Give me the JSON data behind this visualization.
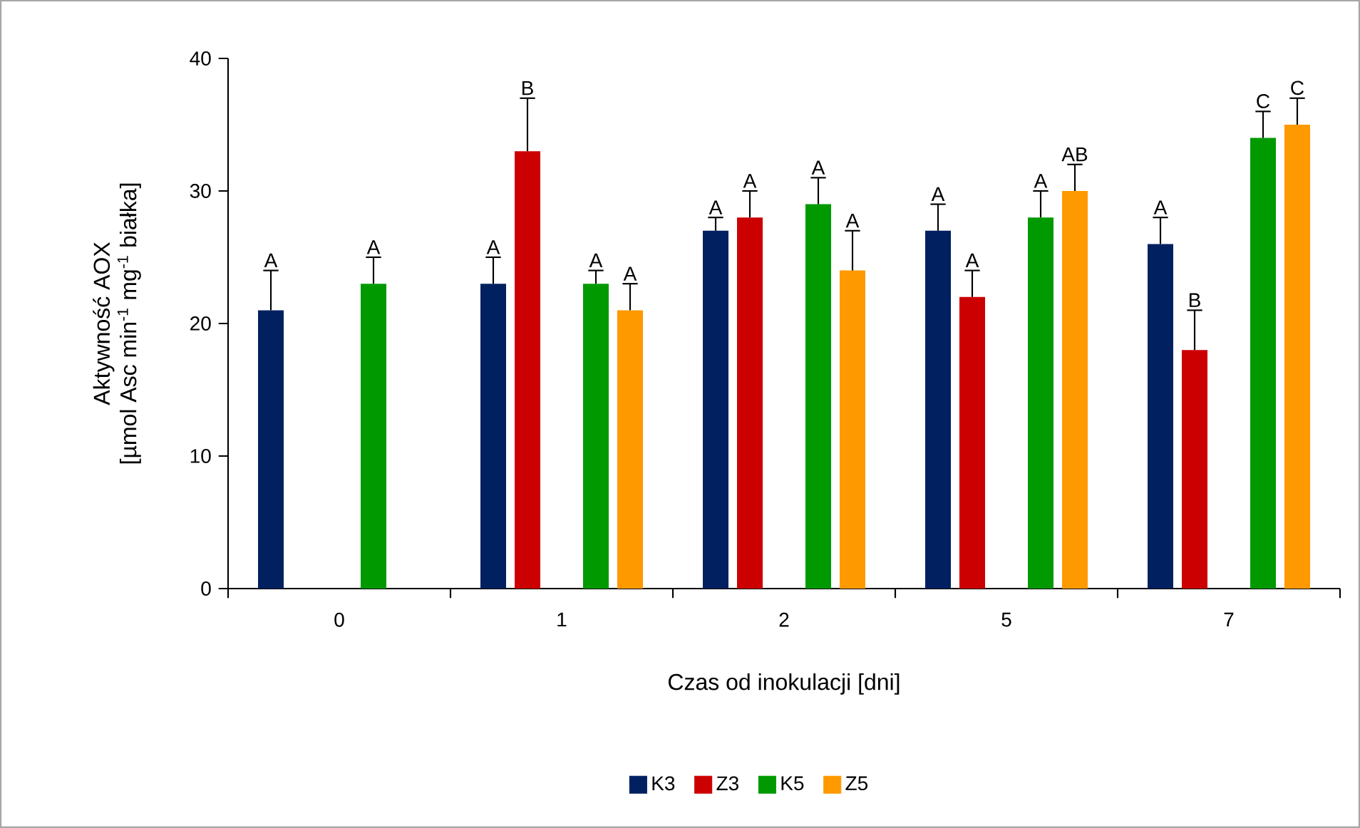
{
  "chart_data": {
    "type": "bar",
    "categories": [
      "0",
      "1",
      "2",
      "5",
      "7"
    ],
    "xlabel": "Czas od inokulacji [dni]",
    "ylabel": "Aktywność AOX [µmol Asc min$^{-1}$ mg$^{-1}$ białka]",
    "ylim": [
      0,
      40
    ],
    "yticks": [
      0,
      10,
      20,
      30,
      40
    ],
    "legend": "bottom",
    "series": [
      {
        "name": "K3",
        "color": "#002060",
        "values": [
          21,
          23,
          27,
          27,
          26
        ],
        "errors": [
          [
            21,
            24
          ],
          [
            23,
            25
          ],
          [
            27,
            28
          ],
          [
            27,
            29
          ],
          [
            26,
            28
          ]
        ],
        "value_labels": [
          "A",
          "A",
          "A",
          "A",
          "A"
        ]
      },
      {
        "name": "Z3",
        "color": "#cc0000",
        "values": [
          null,
          33,
          28,
          22,
          18
        ],
        "errors": [
          null,
          [
            33,
            37
          ],
          [
            28,
            30
          ],
          [
            22,
            24
          ],
          [
            18,
            21
          ]
        ],
        "value_labels": [
          null,
          "B",
          "A",
          "A",
          "B"
        ]
      },
      {
        "name": "K5",
        "color": "#009900",
        "values": [
          23,
          23,
          29,
          28,
          34
        ],
        "errors": [
          [
            23,
            25
          ],
          [
            23,
            24
          ],
          [
            29,
            31
          ],
          [
            28,
            30
          ],
          [
            34,
            36
          ]
        ],
        "value_labels": [
          "A",
          "A",
          "A",
          "A",
          "C"
        ]
      },
      {
        "name": "Z5",
        "color": "#ff9900",
        "values": [
          null,
          21,
          24,
          30,
          35
        ],
        "errors": [
          null,
          [
            21,
            23
          ],
          [
            24,
            27
          ],
          [
            30,
            32
          ],
          [
            35,
            37
          ]
        ],
        "value_labels": [
          null,
          "A",
          "A",
          "AB",
          "C"
        ]
      }
    ]
  }
}
